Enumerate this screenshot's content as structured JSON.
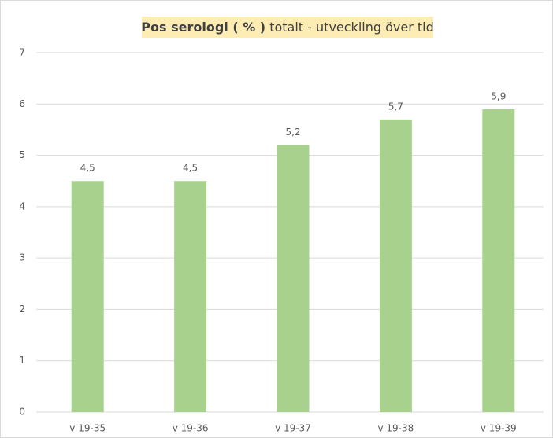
{
  "chart_data": {
    "type": "bar",
    "title": [
      "Pos serologi ( % )",
      "totalt - utveckling över tid"
    ],
    "categories": [
      "v 19-35",
      "v 19-36",
      "v 19-37",
      "v 19-38",
      "v 19-39"
    ],
    "values": [
      4.5,
      4.5,
      5.2,
      5.7,
      5.9
    ],
    "value_labels": [
      "4,5",
      "4,5",
      "5,2",
      "5,7",
      "5,9"
    ],
    "color": "#a9d18e",
    "ylim": [
      0,
      7
    ],
    "yticks": [
      0,
      1,
      2,
      3,
      4,
      5,
      6,
      7
    ],
    "grid": true
  }
}
